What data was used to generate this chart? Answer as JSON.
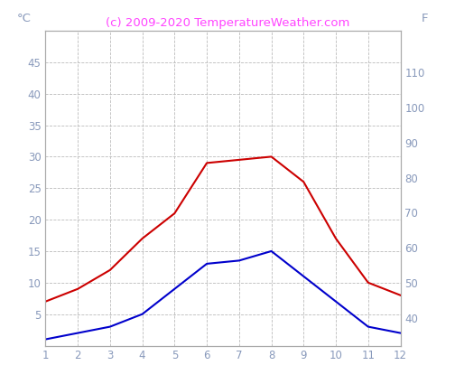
{
  "months": [
    1,
    2,
    3,
    4,
    5,
    6,
    7,
    8,
    9,
    10,
    11,
    12
  ],
  "red_line": [
    7,
    9,
    12,
    17,
    21,
    29,
    29.5,
    30,
    26,
    17,
    10,
    8
  ],
  "blue_line": [
    1,
    2,
    3,
    5,
    9,
    13,
    13.5,
    15,
    11,
    7,
    3,
    2
  ],
  "red_color": "#cc0000",
  "blue_color": "#0000cc",
  "title": "(c) 2009-2020 TemperatureWeather.com",
  "title_color": "#ff44ff",
  "ylabel_left": "°C",
  "ylabel_right": "F",
  "ylim_left": [
    0,
    50
  ],
  "ylim_right": [
    32,
    122
  ],
  "yticks_left": [
    5,
    10,
    15,
    20,
    25,
    30,
    35,
    40,
    45
  ],
  "yticks_right": [
    40,
    50,
    60,
    70,
    80,
    90,
    100,
    110
  ],
  "xlabel_ticks": [
    1,
    2,
    3,
    4,
    5,
    6,
    7,
    8,
    9,
    10,
    11,
    12
  ],
  "axis_label_color": "#8899bb",
  "grid_color": "#bbbbbb",
  "background_color": "#ffffff",
  "title_fontsize": 9.5,
  "tick_fontsize": 8.5
}
